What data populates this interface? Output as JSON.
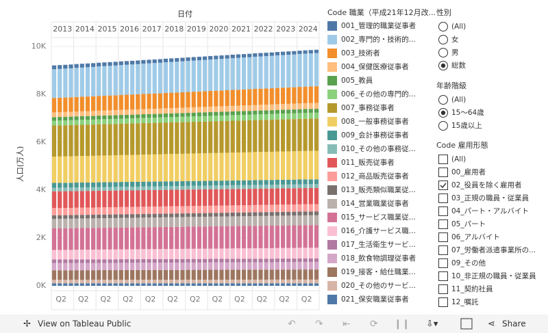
{
  "chart_data": {
    "type": "bar",
    "stacked": true,
    "x_header": "日付",
    "ylabel": "人口(万人)",
    "years": [
      "2013",
      "2014",
      "2015",
      "2016",
      "2017",
      "2018",
      "2019",
      "2020",
      "2021",
      "2022",
      "2023",
      "2024"
    ],
    "categories": [
      null,
      "Q2",
      null,
      null,
      null,
      "Q2",
      null,
      null,
      null,
      "Q2",
      null,
      null,
      null,
      "Q2",
      null,
      null,
      null,
      "Q2",
      null,
      null,
      null,
      "Q2",
      null,
      null,
      null,
      "Q2",
      null,
      null,
      null,
      "Q2",
      null,
      null,
      null,
      "Q2",
      null,
      null,
      null,
      "Q2",
      null,
      null,
      null,
      "Q2",
      null,
      null,
      null,
      "Q2",
      null,
      null
    ],
    "ylim": [
      0,
      10300
    ],
    "yticks": [
      {
        "value": 0,
        "label": "0K"
      },
      {
        "value": 2000,
        "label": "2K"
      },
      {
        "value": 4000,
        "label": "4K"
      },
      {
        "value": 6000,
        "label": "6K"
      },
      {
        "value": 8000,
        "label": "8K"
      },
      {
        "value": 10000,
        "label": "10K"
      }
    ],
    "grid": true,
    "legend_title": "Code 職業（平成21年12月改...",
    "series": [
      {
        "name": "001_管理的職業従事者",
        "color": "#4e79a7",
        "values": [
          160,
          160,
          159,
          159,
          158,
          158,
          157,
          157,
          156,
          156,
          155,
          155,
          154,
          154,
          153,
          153,
          152,
          152,
          151,
          151,
          150,
          150,
          149,
          149,
          148,
          148,
          147,
          147,
          146,
          146,
          145,
          145,
          144,
          144,
          143,
          143,
          142,
          142,
          141,
          141,
          140,
          140,
          139,
          139,
          138,
          138,
          137,
          137
        ]
      },
      {
        "name": "002_専門的・技術的...",
        "color": "#a0cbe8",
        "values": [
          1200,
          1204,
          1208,
          1212,
          1216,
          1220,
          1224,
          1228,
          1232,
          1236,
          1240,
          1244,
          1248,
          1252,
          1256,
          1260,
          1264,
          1268,
          1272,
          1276,
          1280,
          1284,
          1288,
          1292,
          1296,
          1300,
          1304,
          1308,
          1312,
          1316,
          1320,
          1324,
          1328,
          1332,
          1336,
          1340,
          1344,
          1348,
          1352,
          1356,
          1360,
          1364,
          1368,
          1372,
          1376,
          1380,
          1384,
          1388
        ]
      },
      {
        "name": "003_技術者",
        "color": "#f28e2b",
        "values": [
          600,
          602,
          604,
          606,
          608,
          610,
          612,
          614,
          616,
          618,
          620,
          622,
          624,
          626,
          628,
          630,
          632,
          634,
          636,
          638,
          640,
          642,
          644,
          646,
          648,
          650,
          652,
          654,
          656,
          658,
          660,
          662,
          664,
          666,
          668,
          670,
          672,
          674,
          676,
          678,
          680,
          682,
          684,
          686,
          688,
          690,
          692,
          694
        ]
      },
      {
        "name": "004_保健医療従事者",
        "color": "#ffbe7d",
        "values": [
          200,
          201,
          202,
          203,
          204,
          205,
          206,
          207,
          208,
          209,
          210,
          211,
          212,
          213,
          214,
          215,
          216,
          217,
          218,
          219,
          220,
          221,
          222,
          223,
          224,
          225,
          226,
          227,
          228,
          229,
          230,
          231,
          232,
          233,
          234,
          235,
          236,
          237,
          238,
          239,
          240,
          241,
          242,
          243,
          244,
          245,
          246,
          247
        ]
      },
      {
        "name": "005_教員",
        "color": "#59a14f",
        "values": [
          150,
          150,
          150,
          150,
          151,
          151,
          151,
          151,
          152,
          152,
          152,
          152,
          153,
          153,
          153,
          153,
          154,
          154,
          154,
          154,
          155,
          155,
          155,
          155,
          156,
          156,
          156,
          156,
          157,
          157,
          157,
          157,
          158,
          158,
          158,
          158,
          159,
          159,
          159,
          159,
          160,
          160,
          160,
          160,
          161,
          161,
          161,
          161
        ]
      },
      {
        "name": "006_その他の専門的...",
        "color": "#8cd17d",
        "values": [
          200,
          201,
          202,
          203,
          204,
          205,
          206,
          207,
          208,
          209,
          210,
          211,
          212,
          213,
          214,
          215,
          216,
          217,
          218,
          219,
          220,
          221,
          222,
          223,
          224,
          225,
          226,
          227,
          228,
          229,
          230,
          231,
          232,
          233,
          234,
          235,
          236,
          237,
          238,
          239,
          240,
          241,
          242,
          243,
          244,
          245,
          246,
          247
        ]
      },
      {
        "name": "007_事務従事者",
        "color": "#b6992d",
        "values": [
          1300,
          1301,
          1302,
          1303,
          1304,
          1305,
          1306,
          1307,
          1308,
          1309,
          1310,
          1311,
          1312,
          1313,
          1314,
          1315,
          1316,
          1317,
          1318,
          1319,
          1320,
          1321,
          1322,
          1323,
          1324,
          1325,
          1326,
          1327,
          1328,
          1329,
          1330,
          1331,
          1332,
          1333,
          1334,
          1335,
          1336,
          1337,
          1338,
          1339,
          1340,
          1341,
          1342,
          1343,
          1344,
          1345,
          1346,
          1347
        ]
      },
      {
        "name": "008_一般事務従事者",
        "color": "#f1ce63",
        "values": [
          1100,
          1102,
          1104,
          1106,
          1108,
          1110,
          1112,
          1114,
          1116,
          1118,
          1120,
          1122,
          1124,
          1126,
          1128,
          1130,
          1132,
          1134,
          1136,
          1138,
          1140,
          1142,
          1144,
          1146,
          1148,
          1150,
          1152,
          1154,
          1156,
          1158,
          1160,
          1162,
          1164,
          1166,
          1168,
          1170,
          1172,
          1174,
          1176,
          1178,
          1180,
          1182,
          1184,
          1186,
          1188,
          1190,
          1192,
          1194
        ]
      },
      {
        "name": "009_会計事務従事者",
        "color": "#499894",
        "values": [
          200,
          200,
          200,
          200,
          200,
          200,
          200,
          200,
          200,
          200,
          200,
          200,
          200,
          200,
          200,
          200,
          200,
          200,
          200,
          200,
          200,
          200,
          200,
          200,
          200,
          200,
          200,
          200,
          200,
          200,
          200,
          200,
          200,
          200,
          200,
          200,
          200,
          200,
          200,
          200,
          200,
          200,
          200,
          200,
          200,
          200,
          200,
          200
        ]
      },
      {
        "name": "010_その他の事務従...",
        "color": "#86bcb6",
        "values": [
          150,
          150,
          150,
          150,
          151,
          151,
          151,
          151,
          152,
          152,
          152,
          152,
          153,
          153,
          153,
          153,
          154,
          154,
          154,
          154,
          155,
          155,
          155,
          155,
          156,
          156,
          156,
          156,
          157,
          157,
          157,
          157,
          158,
          158,
          158,
          158,
          159,
          159,
          159,
          159,
          160,
          160,
          160,
          160,
          161,
          161,
          161,
          161
        ]
      },
      {
        "name": "011_販売従事者",
        "color": "#e15759",
        "values": [
          700,
          700,
          700,
          700,
          698,
          698,
          698,
          698,
          696,
          696,
          696,
          696,
          694,
          694,
          694,
          694,
          692,
          692,
          692,
          692,
          690,
          690,
          690,
          690,
          688,
          688,
          688,
          688,
          686,
          686,
          686,
          686,
          684,
          684,
          684,
          684,
          682,
          682,
          682,
          682,
          680,
          680,
          680,
          680,
          678,
          678,
          678,
          678
        ]
      },
      {
        "name": "012_商品販売従事者",
        "color": "#ff9d9a",
        "values": [
          300,
          300,
          300,
          300,
          300,
          300,
          300,
          300,
          300,
          300,
          300,
          300,
          300,
          300,
          300,
          300,
          300,
          300,
          300,
          300,
          300,
          300,
          300,
          300,
          300,
          300,
          300,
          300,
          300,
          300,
          300,
          300,
          300,
          300,
          300,
          300,
          300,
          300,
          300,
          300,
          300,
          300,
          300,
          300,
          300,
          300,
          300,
          300
        ]
      },
      {
        "name": "013_販売類似職業従...",
        "color": "#79706e",
        "values": [
          150,
          150,
          150,
          150,
          151,
          151,
          151,
          151,
          152,
          152,
          152,
          152,
          153,
          153,
          153,
          153,
          154,
          154,
          154,
          154,
          155,
          155,
          155,
          155,
          156,
          156,
          156,
          156,
          157,
          157,
          157,
          157,
          158,
          158,
          158,
          158,
          159,
          159,
          159,
          159,
          160,
          160,
          160,
          160,
          161,
          161,
          161,
          161
        ]
      },
      {
        "name": "014_営業職業従事者",
        "color": "#bab0ac",
        "values": [
          400,
          400,
          400,
          400,
          401,
          401,
          401,
          401,
          402,
          402,
          402,
          402,
          403,
          403,
          403,
          403,
          404,
          404,
          404,
          404,
          405,
          405,
          405,
          405,
          406,
          406,
          406,
          406,
          407,
          407,
          407,
          407,
          408,
          408,
          408,
          408,
          409,
          409,
          409,
          409,
          410,
          410,
          410,
          410,
          411,
          411,
          411,
          411
        ]
      },
      {
        "name": "015_サービス職業従...",
        "color": "#d37295",
        "values": [
          900,
          901,
          902,
          903,
          904,
          905,
          906,
          907,
          908,
          909,
          910,
          911,
          912,
          913,
          914,
          915,
          916,
          917,
          918,
          919,
          920,
          921,
          922,
          923,
          924,
          925,
          926,
          927,
          928,
          929,
          930,
          931,
          932,
          933,
          934,
          935,
          936,
          937,
          938,
          939,
          940,
          941,
          942,
          943,
          944,
          945,
          946,
          947
        ]
      },
      {
        "name": "016_介護サービス職...",
        "color": "#fabfd2",
        "values": [
          400,
          401,
          402,
          403,
          404,
          405,
          406,
          407,
          408,
          409,
          410,
          411,
          412,
          413,
          414,
          415,
          416,
          417,
          418,
          419,
          420,
          421,
          422,
          423,
          424,
          425,
          426,
          427,
          428,
          429,
          430,
          431,
          432,
          433,
          434,
          435,
          436,
          437,
          438,
          439,
          440,
          441,
          442,
          443,
          444,
          445,
          446,
          447
        ]
      },
      {
        "name": "017_生活衛生サービ...",
        "color": "#b07aa1",
        "values": [
          150,
          150,
          150,
          150,
          150,
          150,
          150,
          150,
          150,
          150,
          150,
          150,
          150,
          150,
          150,
          150,
          150,
          150,
          150,
          150,
          150,
          150,
          150,
          150,
          150,
          150,
          150,
          150,
          150,
          150,
          150,
          150,
          150,
          150,
          150,
          150,
          150,
          150,
          150,
          150,
          150,
          150,
          150,
          150,
          150,
          150,
          150,
          150
        ]
      },
      {
        "name": "018_飲食物調理従事者",
        "color": "#d4a6c8",
        "values": [
          300,
          300,
          300,
          300,
          301,
          301,
          301,
          301,
          302,
          302,
          302,
          302,
          303,
          303,
          303,
          303,
          304,
          304,
          304,
          304,
          305,
          305,
          305,
          305,
          306,
          306,
          306,
          306,
          307,
          307,
          307,
          307,
          308,
          308,
          308,
          308,
          309,
          309,
          309,
          309,
          310,
          310,
          310,
          310,
          311,
          311,
          311,
          311
        ]
      },
      {
        "name": "019_接客・給仕職業...",
        "color": "#9d7660",
        "values": [
          400,
          400,
          400,
          400,
          402,
          402,
          402,
          402,
          404,
          404,
          404,
          404,
          406,
          406,
          406,
          406,
          408,
          408,
          408,
          408,
          410,
          410,
          410,
          410,
          412,
          412,
          412,
          412,
          414,
          414,
          414,
          414,
          416,
          416,
          416,
          416,
          418,
          418,
          418,
          418,
          420,
          420,
          420,
          420,
          422,
          422,
          422,
          422
        ]
      },
      {
        "name": "020_その他のサービ...",
        "color": "#d7b5a6",
        "values": [
          150,
          150,
          150,
          150,
          151,
          151,
          151,
          151,
          152,
          152,
          152,
          152,
          153,
          153,
          153,
          153,
          154,
          154,
          154,
          154,
          155,
          155,
          155,
          155,
          156,
          156,
          156,
          156,
          157,
          157,
          157,
          157,
          158,
          158,
          158,
          158,
          159,
          159,
          159,
          159,
          160,
          160,
          160,
          160,
          161,
          161,
          161,
          161
        ]
      },
      {
        "name": "021_保安職業従事者",
        "color": "#4e79a7",
        "values": [
          100,
          100,
          100,
          100,
          100,
          100,
          100,
          100,
          100,
          100,
          100,
          100,
          100,
          100,
          100,
          100,
          100,
          100,
          100,
          100,
          100,
          100,
          100,
          100,
          100,
          100,
          100,
          100,
          100,
          100,
          100,
          100,
          100,
          100,
          100,
          100,
          100,
          100,
          100,
          100,
          100,
          100,
          100,
          100,
          100,
          100,
          100,
          100
        ]
      }
    ]
  },
  "filters": [
    {
      "title": "性別",
      "kind": "radio",
      "options": [
        "(All)",
        "女",
        "男",
        "総数"
      ],
      "selected": [
        3
      ]
    },
    {
      "title": "年齢階級",
      "kind": "radio",
      "options": [
        "(All)",
        "15～64歳",
        "15歳以上"
      ],
      "selected": [
        1
      ]
    },
    {
      "title": "Code 雇用形態",
      "kind": "check",
      "options": [
        "(All)",
        "00_雇用者",
        "02_役員を除く雇用者",
        "03_正規の職員・従業員",
        "04_パート・アルバイト",
        "05_パート",
        "06_アルバイト",
        "07_労働者派遣事業所の...",
        "09_その他",
        "10_非正規の職員・従業員",
        "11_契約社員",
        "12_嘱託"
      ],
      "selected": [
        2
      ]
    }
  ],
  "footer": {
    "link": "View on Tableau Public",
    "share": "Share"
  }
}
